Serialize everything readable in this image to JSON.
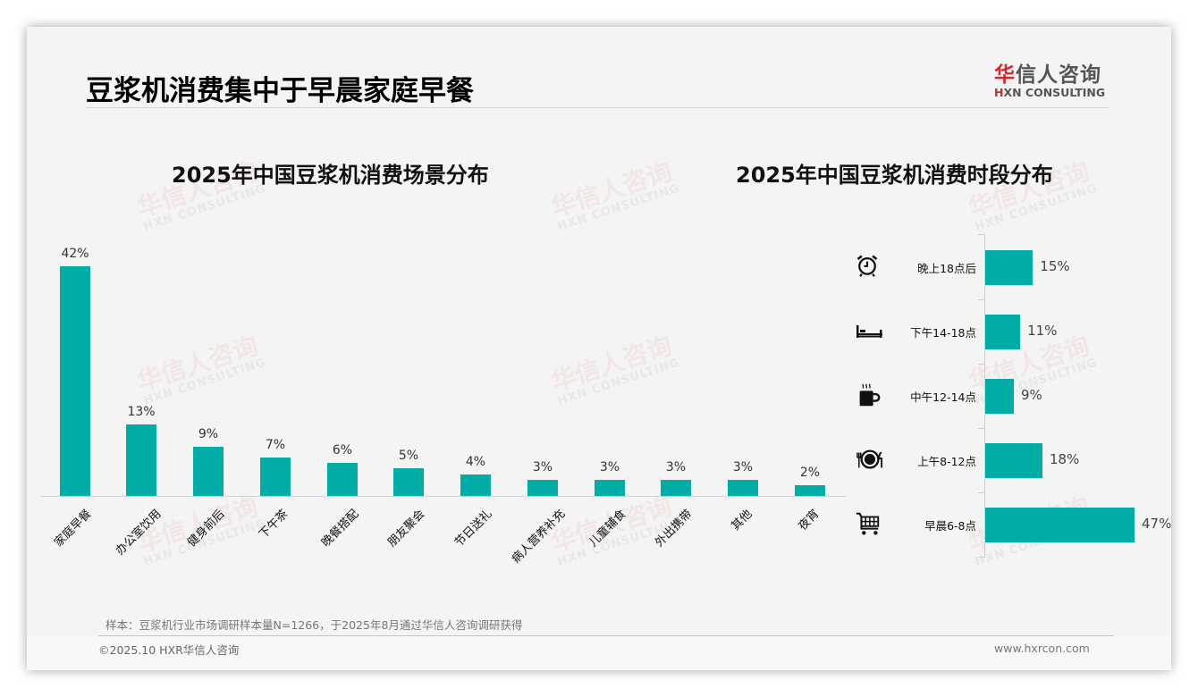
{
  "header": {
    "title": "豆浆机消费集中于早晨家庭早餐",
    "logo_cn_first": "华",
    "logo_cn_rest": "信人咨询",
    "logo_en_first": "H",
    "logo_en_rest": "XN CONSULTING"
  },
  "watermark": {
    "cn": "华信人咨询",
    "en": "HXN CONSULTING"
  },
  "colors": {
    "bar": "#00ada5",
    "brand_red": "#d7262b"
  },
  "chart_data": [
    {
      "type": "bar",
      "title": "2025年中国豆浆机消费场景分布",
      "categories": [
        "家庭早餐",
        "办公室饮用",
        "健身前后",
        "下午茶",
        "晚餐搭配",
        "朋友聚会",
        "节日送礼",
        "病人营养补充",
        "儿童辅食",
        "外出携带",
        "其他",
        "夜宵"
      ],
      "values": [
        42,
        13,
        9,
        7,
        6,
        5,
        4,
        3,
        3,
        3,
        3,
        2
      ],
      "labels": [
        "42%",
        "13%",
        "9%",
        "7%",
        "6%",
        "5%",
        "4%",
        "3%",
        "3%",
        "3%",
        "3%",
        "2%"
      ],
      "xlabel": "",
      "ylabel": "",
      "unit": "%",
      "grid": false,
      "legend": "none",
      "ylim": [
        0,
        42
      ]
    },
    {
      "type": "bar",
      "orientation": "horizontal",
      "title": "2025年中国豆浆机消费时段分布",
      "categories": [
        "晚上18点后",
        "下午14-18点",
        "中午12-14点",
        "上午8-12点",
        "早晨6-8点"
      ],
      "values": [
        15,
        11,
        9,
        18,
        47
      ],
      "labels": [
        "15%",
        "11%",
        "9%",
        "18%",
        "47%"
      ],
      "icons": [
        "alarm-clock-icon",
        "bed-icon",
        "coffee-mug-icon",
        "plate-cutlery-icon",
        "shopping-cart-icon"
      ],
      "xlabel": "",
      "ylabel": "",
      "unit": "%",
      "grid": false,
      "legend": "none",
      "xlim": [
        0,
        47
      ]
    }
  ],
  "footer": {
    "note": "样本：豆浆机行业市场调研样本量N=1266，于2025年8月通过华信人咨询调研获得",
    "copyright": "©2025.10 HXR华信人咨询",
    "website": "www.hxrcon.com"
  }
}
